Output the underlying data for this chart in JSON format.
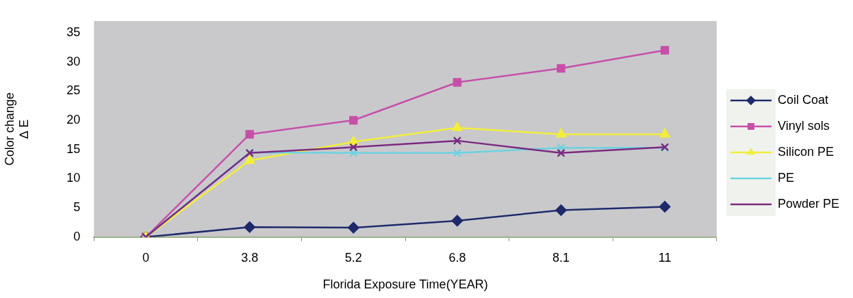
{
  "chart_data": {
    "type": "line",
    "xlabel": "Florida Exposure Time(YEAR)",
    "ylabel": "Color change\n∆ E",
    "categories": [
      "0",
      "3.8",
      "5.2",
      "6.8",
      "8.1",
      "11"
    ],
    "ylim": [
      0,
      37
    ],
    "yticks": [
      0,
      5,
      10,
      15,
      20,
      25,
      30,
      35
    ],
    "grid": false,
    "legend": "right",
    "line_style": "solid",
    "series": [
      {
        "name": "Coil Coat",
        "color": "#1f2a6b",
        "marker": "diamond",
        "values": [
          0,
          1.7,
          1.6,
          2.8,
          4.6,
          5.2
        ]
      },
      {
        "name": "Vinyl sols",
        "color": "#c64fa8",
        "marker": "square",
        "values": [
          0,
          17.6,
          20,
          26.5,
          28.9,
          32
        ]
      },
      {
        "name": "Silicon PE",
        "color": "#f2ee3a",
        "marker": "triangle",
        "values": [
          0,
          13.1,
          16.3,
          18.7,
          17.6,
          17.6
        ]
      },
      {
        "name": "PE",
        "color": "#6cd3e0",
        "marker": "cross",
        "values": [
          0,
          14.5,
          14.4,
          14.4,
          15.3,
          15.3
        ]
      },
      {
        "name": "Powder PE",
        "color": "#7b2a80",
        "marker": "cross",
        "values": [
          0,
          14.4,
          15.4,
          16.5,
          14.4,
          15.4
        ]
      }
    ]
  }
}
